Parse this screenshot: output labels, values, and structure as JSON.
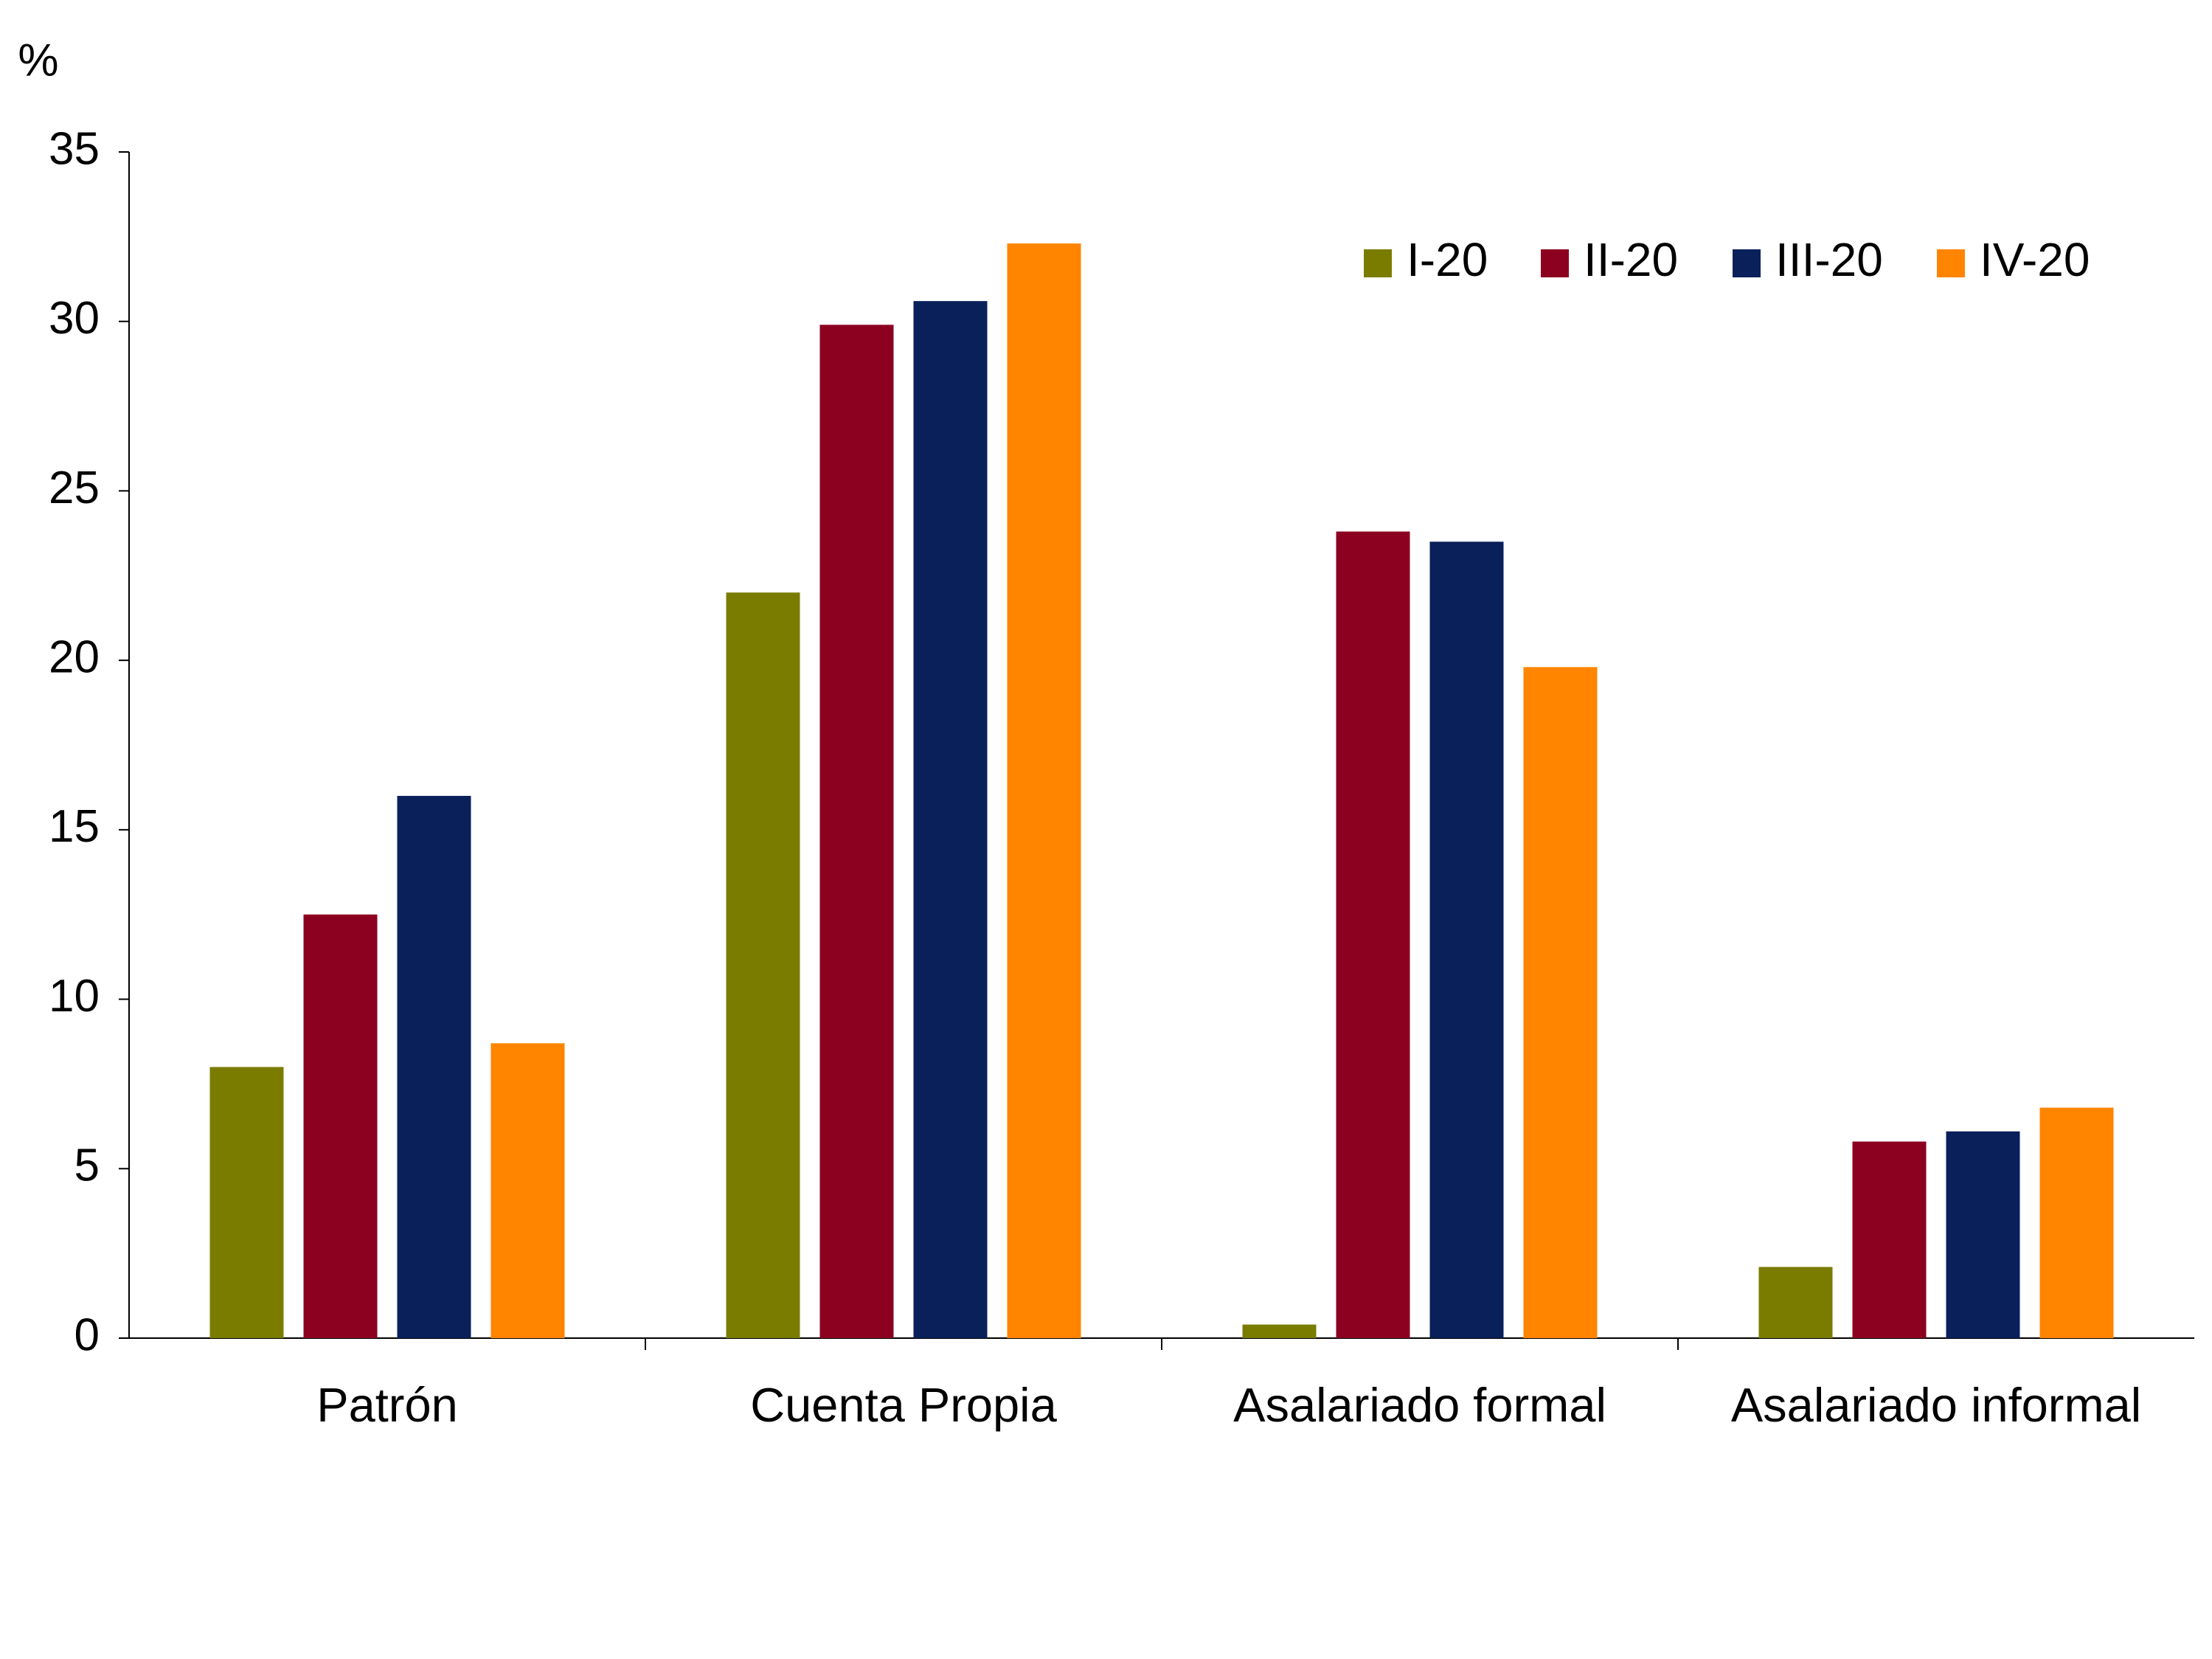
{
  "chart_data": {
    "type": "bar",
    "y_label": "%",
    "categories": [
      "Patrón",
      "Cuenta Propia",
      "Asalariado formal",
      "Asalariado informal"
    ],
    "series": [
      {
        "name": "I-20",
        "color": "#7a7c00",
        "values": [
          8.0,
          22.0,
          0.4,
          2.1
        ]
      },
      {
        "name": "II-20",
        "color": "#8c0020",
        "values": [
          12.5,
          29.9,
          23.8,
          5.8
        ]
      },
      {
        "name": "III-20",
        "color": "#0a205a",
        "values": [
          16.0,
          30.6,
          23.5,
          6.1
        ]
      },
      {
        "name": "IV-20",
        "color": "#ff8400",
        "values": [
          8.7,
          32.3,
          19.8,
          6.8
        ]
      }
    ],
    "ylim": [
      0,
      35
    ],
    "yticks": [
      0,
      5,
      10,
      15,
      20,
      25,
      30,
      35
    ],
    "grid": false,
    "legend": "top-right"
  }
}
